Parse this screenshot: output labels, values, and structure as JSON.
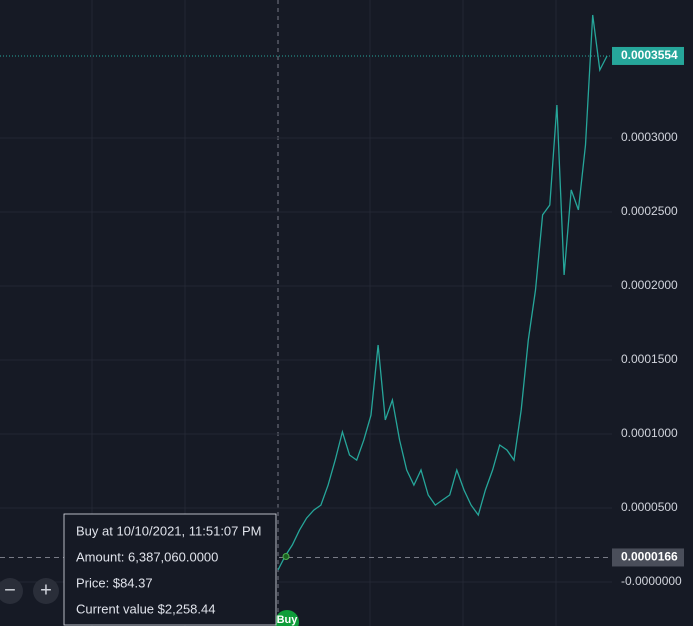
{
  "chart_data": {
    "type": "line",
    "color": "#26a69a",
    "values": [
      8.1e-06,
      1.76e-05,
      2.5e-05,
      3.51e-05,
      4.32e-05,
      4.86e-05,
      5.2e-05,
      6.55e-05,
      8.24e-05,
      0.0001014,
      8.58e-05,
      8.24e-05,
      9.59e-05,
      0.0001128,
      0.0001601,
      0.0001095,
      0.000123,
      9.59e-05,
      7.57e-05,
      6.55e-05,
      7.57e-05,
      5.88e-05,
      5.2e-05,
      5.54e-05,
      5.88e-05,
      7.57e-05,
      6.22e-05,
      5.2e-05,
      4.53e-05,
      6.22e-05,
      7.57e-05,
      9.26e-05,
      8.92e-05,
      8.24e-05,
      0.0001162,
      0.0001635,
      0.0001973,
      0.000248,
      0.0002547,
      0.0003223,
      0.0002074,
      0.0002649,
      0.0002514,
      0.0002953,
      0.0003831,
      0.0003459,
      0.0003554
    ],
    "ylim": [
      -2.97e-05,
      0.0003932
    ],
    "yticks": [
      {
        "value": 0.0003,
        "label": "0.0003000"
      },
      {
        "value": 0.00025,
        "label": "0.0002500"
      },
      {
        "value": 0.0002,
        "label": "0.0002000"
      },
      {
        "value": 0.00015,
        "label": "0.0001500"
      },
      {
        "value": 0.0001,
        "label": "0.0001000"
      },
      {
        "value": 5e-05,
        "label": "0.0000500"
      },
      {
        "value": 0,
        "label": "-0.0000000"
      }
    ],
    "grid": true,
    "last_price": {
      "value": 0.0003554,
      "label": "0.0003554",
      "color": "#26a69a"
    },
    "buy_price": {
      "value": 1.66e-05,
      "label": "0.0000166"
    },
    "buy_marker": "Buy",
    "tooltip": [
      "Buy at 10/10/2021, 11:51:07 PM",
      "Amount: 6,387,060.0000",
      "Price: $84.37",
      "Current value $2,258.44"
    ],
    "controls": [
      "−",
      "+"
    ]
  }
}
